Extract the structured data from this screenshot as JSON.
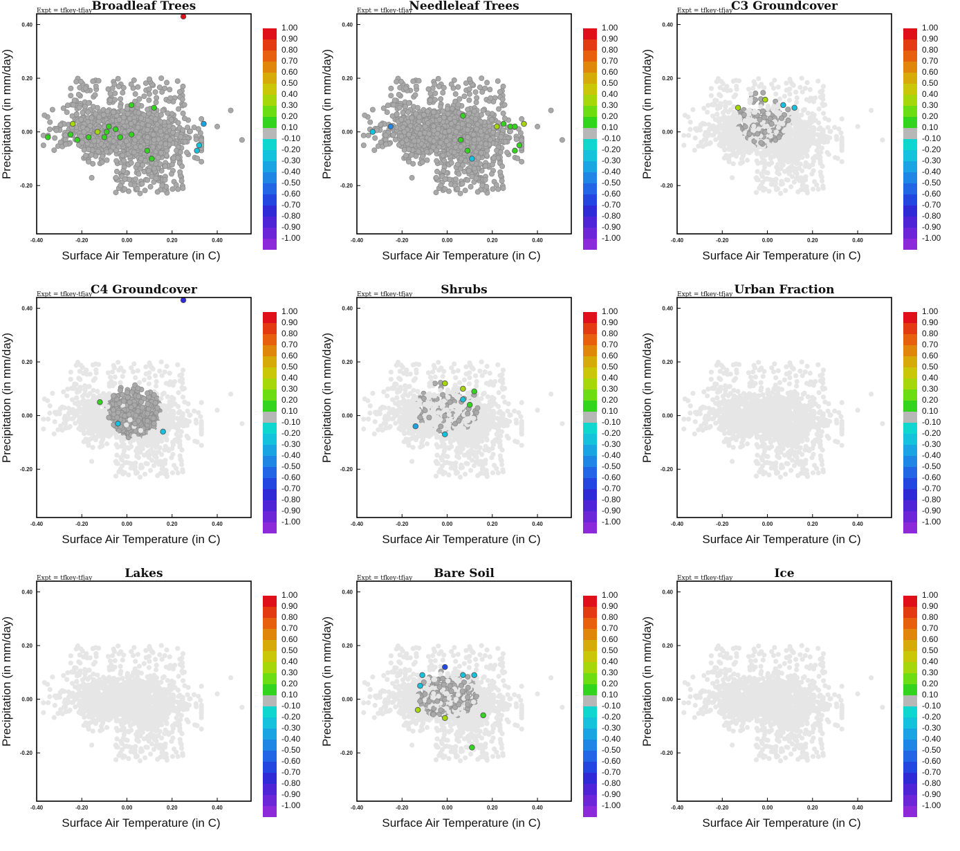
{
  "figure": {
    "experiment_label": "Expt = tfkey-tfjay",
    "xlabel": "Surface Air Temperature (in C)",
    "ylabel": "Precipitation (in mm/day)",
    "x_ticks": [
      "-0.40",
      "-0.20",
      "0.00",
      "0.20",
      "0.40"
    ],
    "y_ticks": [
      "0.40",
      "0.20",
      "0.00",
      "-0.20"
    ],
    "colorbar_labels": [
      "1.00",
      "0.90",
      "0.80",
      "0.70",
      "0.60",
      "0.50",
      "0.40",
      "0.30",
      "0.20",
      "0.10",
      "-0.10",
      "-0.20",
      "-0.30",
      "-0.40",
      "-0.50",
      "-0.60",
      "-0.70",
      "-0.80",
      "-0.90",
      "-1.00"
    ],
    "colorbar_colors": [
      "#e0101a",
      "#e43a12",
      "#e6600e",
      "#e0860a",
      "#d6aa08",
      "#c9c707",
      "#a6d70a",
      "#6cdc13",
      "#33d41e",
      "#b7b7b7",
      "#10d6d0",
      "#14c2de",
      "#1aa4e4",
      "#1f86e6",
      "#2266e6",
      "#2446e0",
      "#2f2ad6",
      "#4e24d6",
      "#6c26d8",
      "#8c2ada"
    ],
    "point_colors": {
      "background": "#e6e6e6",
      "coverage": "#a9a9a9",
      "outline": "#8c8c8c"
    }
  },
  "chart_data": [
    {
      "type": "scatter",
      "title": "Broadleaf Trees",
      "xlabel": "Surface Air Temperature (in C)",
      "ylabel": "Precipitation (in mm/day)",
      "xlim": [
        -0.4,
        0.55
      ],
      "ylim": [
        -0.38,
        0.44
      ],
      "colorbar_range": [
        -1.0,
        1.0
      ],
      "coverage_center": [
        0.0,
        0.01
      ],
      "coverage_spread": [
        0.13,
        0.055
      ],
      "coverage_weight": 1.0,
      "highlight_points": [
        {
          "x": 0.25,
          "y": 0.43,
          "value": 0.9
        },
        {
          "x": 0.02,
          "y": 0.1,
          "value": 0.15
        },
        {
          "x": 0.12,
          "y": 0.09,
          "value": 0.15
        },
        {
          "x": -0.24,
          "y": 0.03,
          "value": 0.35
        },
        {
          "x": -0.13,
          "y": 0.0,
          "value": 0.35
        },
        {
          "x": -0.09,
          "y": 0.0,
          "value": 0.2
        },
        {
          "x": -0.08,
          "y": 0.02,
          "value": 0.15
        },
        {
          "x": -0.05,
          "y": 0.01,
          "value": 0.15
        },
        {
          "x": -0.35,
          "y": -0.02,
          "value": 0.15
        },
        {
          "x": -0.25,
          "y": -0.01,
          "value": 0.15
        },
        {
          "x": -0.22,
          "y": -0.03,
          "value": 0.15
        },
        {
          "x": -0.17,
          "y": -0.02,
          "value": 0.15
        },
        {
          "x": -0.1,
          "y": -0.02,
          "value": 0.15
        },
        {
          "x": -0.03,
          "y": -0.02,
          "value": 0.15
        },
        {
          "x": 0.02,
          "y": -0.01,
          "value": 0.15
        },
        {
          "x": 0.09,
          "y": -0.07,
          "value": 0.15
        },
        {
          "x": 0.11,
          "y": -0.1,
          "value": 0.15
        },
        {
          "x": 0.34,
          "y": 0.03,
          "value": -0.35
        },
        {
          "x": 0.32,
          "y": -0.05,
          "value": -0.25
        },
        {
          "x": 0.31,
          "y": -0.07,
          "value": -0.25
        }
      ]
    },
    {
      "type": "scatter",
      "title": "Needleleaf Trees",
      "xlabel": "Surface Air Temperature (in C)",
      "ylabel": "Precipitation (in mm/day)",
      "xlim": [
        -0.4,
        0.55
      ],
      "ylim": [
        -0.38,
        0.44
      ],
      "colorbar_range": [
        -1.0,
        1.0
      ],
      "coverage_center": [
        0.0,
        0.0
      ],
      "coverage_spread": [
        0.15,
        0.055
      ],
      "coverage_weight": 1.0,
      "highlight_points": [
        {
          "x": 0.07,
          "y": 0.06,
          "value": 0.15
        },
        {
          "x": 0.22,
          "y": 0.02,
          "value": 0.35
        },
        {
          "x": 0.25,
          "y": 0.03,
          "value": 0.15
        },
        {
          "x": 0.28,
          "y": 0.02,
          "value": 0.15
        },
        {
          "x": 0.3,
          "y": 0.02,
          "value": 0.15
        },
        {
          "x": 0.34,
          "y": 0.03,
          "value": 0.35
        },
        {
          "x": 0.06,
          "y": -0.03,
          "value": 0.15
        },
        {
          "x": 0.09,
          "y": -0.07,
          "value": 0.15
        },
        {
          "x": 0.32,
          "y": -0.05,
          "value": 0.15
        },
        {
          "x": 0.3,
          "y": -0.07,
          "value": 0.15
        },
        {
          "x": 0.11,
          "y": -0.1,
          "value": -0.25
        },
        {
          "x": -0.25,
          "y": 0.02,
          "value": -0.4
        },
        {
          "x": -0.33,
          "y": 0.0,
          "value": -0.3
        }
      ]
    },
    {
      "type": "scatter",
      "title": "C3 Groundcover",
      "xlabel": "Surface Air Temperature (in C)",
      "ylabel": "Precipitation (in mm/day)",
      "xlim": [
        -0.4,
        0.55
      ],
      "ylim": [
        -0.38,
        0.44
      ],
      "colorbar_range": [
        -1.0,
        1.0
      ],
      "coverage_center": [
        -0.02,
        0.05
      ],
      "coverage_spread": [
        0.08,
        0.07
      ],
      "coverage_weight": 0.14,
      "highlight_points": [
        {
          "x": -0.13,
          "y": 0.09,
          "value": 0.35
        },
        {
          "x": -0.01,
          "y": 0.12,
          "value": 0.35
        },
        {
          "x": 0.07,
          "y": 0.1,
          "value": -0.25
        },
        {
          "x": 0.12,
          "y": 0.09,
          "value": -0.25
        }
      ]
    },
    {
      "type": "scatter",
      "title": "C4 Groundcover",
      "xlabel": "Surface Air Temperature (in C)",
      "ylabel": "Precipitation (in mm/day)",
      "xlim": [
        -0.4,
        0.55
      ],
      "ylim": [
        -0.38,
        0.44
      ],
      "colorbar_range": [
        -1.0,
        1.0
      ],
      "coverage_center": [
        0.03,
        0.02
      ],
      "coverage_spread": [
        0.08,
        0.07
      ],
      "coverage_weight": 0.3,
      "highlight_points": [
        {
          "x": 0.25,
          "y": 0.43,
          "value": -0.75
        },
        {
          "x": -0.12,
          "y": 0.05,
          "value": 0.15
        },
        {
          "x": -0.04,
          "y": -0.03,
          "value": -0.25
        },
        {
          "x": 0.16,
          "y": -0.06,
          "value": -0.25
        }
      ]
    },
    {
      "type": "scatter",
      "title": "Shrubs",
      "xlabel": "Surface Air Temperature (in C)",
      "ylabel": "Precipitation (in mm/day)",
      "xlim": [
        -0.4,
        0.55
      ],
      "ylim": [
        -0.38,
        0.44
      ],
      "colorbar_range": [
        -1.0,
        1.0
      ],
      "coverage_center": [
        0.0,
        0.04
      ],
      "coverage_spread": [
        0.1,
        0.07
      ],
      "coverage_weight": 0.08,
      "highlight_points": [
        {
          "x": -0.01,
          "y": 0.12,
          "value": 0.35
        },
        {
          "x": 0.07,
          "y": 0.1,
          "value": 0.35
        },
        {
          "x": 0.12,
          "y": 0.09,
          "value": 0.15
        },
        {
          "x": 0.07,
          "y": 0.06,
          "value": -0.25
        },
        {
          "x": 0.1,
          "y": 0.04,
          "value": 0.15
        },
        {
          "x": -0.14,
          "y": -0.04,
          "value": -0.35
        },
        {
          "x": -0.01,
          "y": -0.07,
          "value": -0.25
        }
      ]
    },
    {
      "type": "scatter",
      "title": "Urban Fraction",
      "xlabel": "Surface Air Temperature (in C)",
      "ylabel": "Precipitation (in mm/day)",
      "xlim": [
        -0.4,
        0.55
      ],
      "ylim": [
        -0.38,
        0.44
      ],
      "colorbar_range": [
        -1.0,
        1.0
      ],
      "coverage_center": [
        0.0,
        0.0
      ],
      "coverage_spread": [
        0.1,
        0.05
      ],
      "coverage_weight": 0.0,
      "highlight_points": []
    },
    {
      "type": "scatter",
      "title": "Lakes",
      "xlabel": "Surface Air Temperature (in C)",
      "ylabel": "Precipitation (in mm/day)",
      "xlim": [
        -0.4,
        0.55
      ],
      "ylim": [
        -0.38,
        0.44
      ],
      "colorbar_range": [
        -1.0,
        1.0
      ],
      "coverage_center": [
        0.0,
        0.0
      ],
      "coverage_spread": [
        0.1,
        0.05
      ],
      "coverage_weight": 0.0,
      "highlight_points": []
    },
    {
      "type": "scatter",
      "title": "Bare Soil",
      "xlabel": "Surface Air Temperature (in C)",
      "ylabel": "Precipitation (in mm/day)",
      "xlim": [
        -0.4,
        0.55
      ],
      "ylim": [
        -0.38,
        0.44
      ],
      "colorbar_range": [
        -1.0,
        1.0
      ],
      "coverage_center": [
        0.0,
        0.02
      ],
      "coverage_spread": [
        0.09,
        0.06
      ],
      "coverage_weight": 0.16,
      "highlight_points": [
        {
          "x": -0.01,
          "y": 0.12,
          "value": -0.7
        },
        {
          "x": -0.11,
          "y": 0.09,
          "value": -0.25
        },
        {
          "x": 0.07,
          "y": 0.09,
          "value": -0.25
        },
        {
          "x": 0.12,
          "y": 0.09,
          "value": -0.25
        },
        {
          "x": -0.12,
          "y": 0.05,
          "value": -0.25
        },
        {
          "x": -0.13,
          "y": -0.04,
          "value": 0.35
        },
        {
          "x": -0.01,
          "y": -0.07,
          "value": 0.35
        },
        {
          "x": 0.16,
          "y": -0.06,
          "value": 0.15
        },
        {
          "x": 0.11,
          "y": -0.18,
          "value": 0.15
        }
      ]
    },
    {
      "type": "scatter",
      "title": "Ice",
      "xlabel": "Surface Air Temperature (in C)",
      "ylabel": "Precipitation (in mm/day)",
      "xlim": [
        -0.4,
        0.55
      ],
      "ylim": [
        -0.38,
        0.44
      ],
      "colorbar_range": [
        -1.0,
        1.0
      ],
      "coverage_center": [
        0.0,
        0.0
      ],
      "coverage_spread": [
        0.1,
        0.05
      ],
      "coverage_weight": 0.0,
      "highlight_points": []
    }
  ]
}
